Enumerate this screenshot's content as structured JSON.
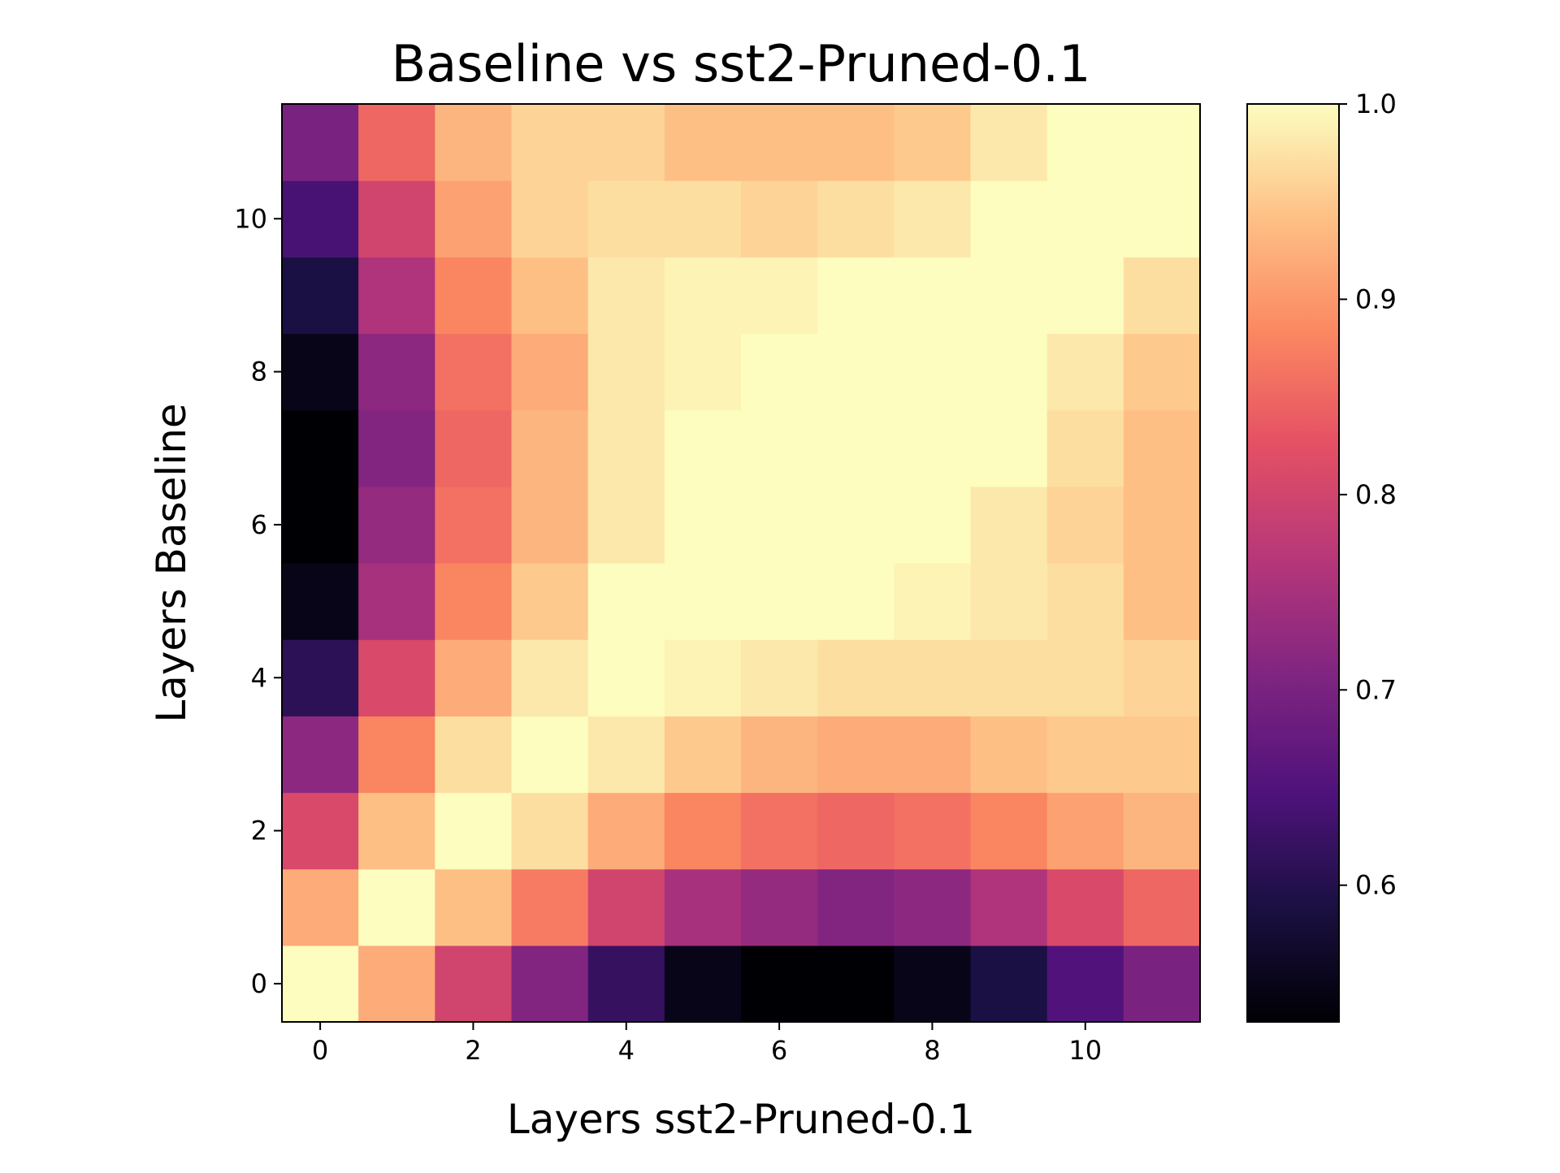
{
  "chart_data": {
    "type": "heatmap",
    "title": "Baseline vs sst2-Pruned-0.1",
    "xlabel": "Layers sst2-Pruned-0.1",
    "ylabel": "Layers Baseline",
    "x": [
      0,
      1,
      2,
      3,
      4,
      5,
      6,
      7,
      8,
      9,
      10,
      11
    ],
    "y": [
      0,
      1,
      2,
      3,
      4,
      5,
      6,
      7,
      8,
      9,
      10,
      11
    ],
    "xticks": [
      "0",
      "2",
      "4",
      "6",
      "8",
      "10"
    ],
    "yticks": [
      "0",
      "2",
      "4",
      "6",
      "8",
      "10"
    ],
    "colormap": "magma",
    "colorbar": {
      "vmin": 0.53,
      "vmax": 1.0,
      "ticks": [
        "0.6",
        "0.7",
        "0.8",
        "0.9",
        "1.0"
      ]
    },
    "values": [
      [
        1.0,
        0.92,
        0.8,
        0.71,
        0.62,
        0.55,
        0.53,
        0.53,
        0.55,
        0.59,
        0.65,
        0.7
      ],
      [
        0.92,
        1.0,
        0.94,
        0.87,
        0.8,
        0.75,
        0.73,
        0.71,
        0.72,
        0.76,
        0.81,
        0.85
      ],
      [
        0.81,
        0.94,
        1.0,
        0.97,
        0.92,
        0.88,
        0.86,
        0.85,
        0.86,
        0.88,
        0.91,
        0.93
      ],
      [
        0.72,
        0.88,
        0.97,
        1.0,
        0.98,
        0.95,
        0.93,
        0.92,
        0.92,
        0.94,
        0.95,
        0.95
      ],
      [
        0.61,
        0.81,
        0.92,
        0.98,
        1.0,
        0.99,
        0.98,
        0.97,
        0.97,
        0.97,
        0.97,
        0.96
      ],
      [
        0.55,
        0.75,
        0.88,
        0.95,
        1.0,
        1.0,
        1.0,
        1.0,
        0.99,
        0.98,
        0.97,
        0.94
      ],
      [
        0.53,
        0.73,
        0.86,
        0.93,
        0.98,
        1.0,
        1.0,
        1.0,
        1.0,
        0.98,
        0.96,
        0.94
      ],
      [
        0.53,
        0.71,
        0.85,
        0.93,
        0.98,
        1.0,
        1.0,
        1.0,
        1.0,
        1.0,
        0.97,
        0.94
      ],
      [
        0.55,
        0.72,
        0.86,
        0.92,
        0.98,
        0.99,
        1.0,
        1.0,
        1.0,
        1.0,
        0.98,
        0.95
      ],
      [
        0.59,
        0.76,
        0.88,
        0.94,
        0.98,
        0.99,
        0.99,
        1.0,
        1.0,
        1.0,
        1.0,
        0.97
      ],
      [
        0.64,
        0.8,
        0.91,
        0.96,
        0.97,
        0.97,
        0.96,
        0.97,
        0.98,
        1.0,
        1.0,
        1.0
      ],
      [
        0.7,
        0.85,
        0.93,
        0.96,
        0.96,
        0.94,
        0.94,
        0.94,
        0.95,
        0.98,
        1.0,
        1.0
      ]
    ]
  }
}
